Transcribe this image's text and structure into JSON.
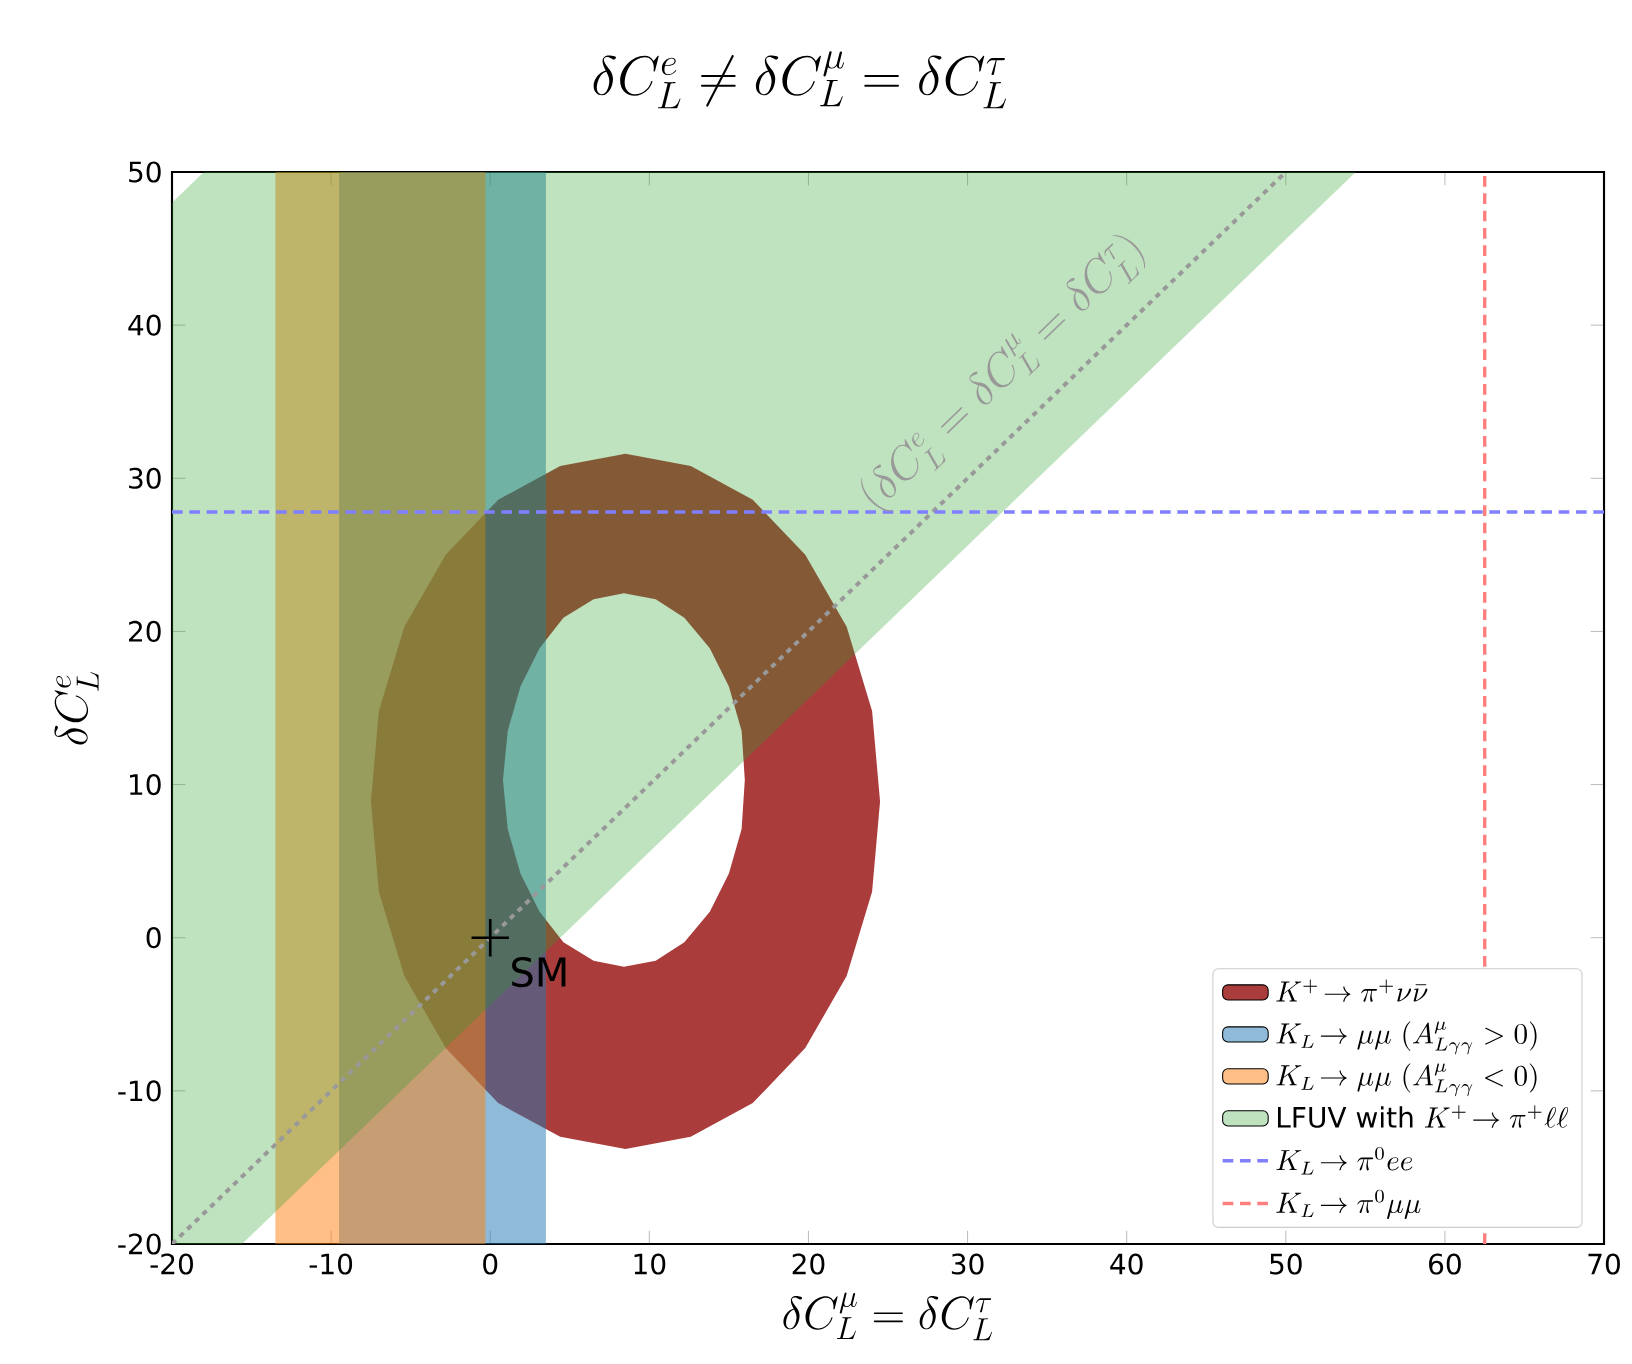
{
  "chart_data": {
    "type": "area",
    "title": "\\delta C^e_L \\neq \\delta C^\\mu_L = \\delta C^\\tau_L",
    "xlabel": "\\delta C^\\mu_L = \\delta C^\\tau_L",
    "ylabel": "\\delta C^e_L",
    "xlim": [
      -20,
      70
    ],
    "ylim": [
      -20,
      50
    ],
    "xticks": [
      -20,
      -10,
      0,
      10,
      20,
      30,
      40,
      50,
      60,
      70
    ],
    "yticks": [
      -20,
      -10,
      0,
      10,
      20,
      30,
      40,
      50
    ],
    "legend": "bottom right",
    "series": [
      {
        "name": "K^+\\!\\to\\pi^+\\nu\\bar{\\nu}",
        "color": "#ab3c3c",
        "x": [
          24.5,
          24.0,
          22.4,
          19.8,
          16.5,
          12.6,
          8.5,
          4.4,
          0.5,
          -2.8,
          -5.4,
          -7.0,
          -7.5,
          -7.0,
          -5.4,
          -2.8,
          0.5,
          4.4,
          8.5,
          12.6,
          16.5,
          19.8,
          22.4,
          24.0,
          null,
          16.0,
          15.8,
          15.0,
          13.8,
          12.2,
          10.4,
          8.4,
          6.5,
          4.6,
          3.1,
          1.9,
          1.1,
          0.8,
          1.1,
          1.9,
          3.1,
          4.6,
          6.5,
          8.4,
          10.4,
          12.2,
          13.8,
          15.0,
          15.8
        ],
        "values": [
          8.9,
          14.8,
          20.3,
          25.0,
          28.6,
          30.8,
          31.6,
          30.8,
          28.6,
          25.0,
          20.3,
          14.8,
          8.9,
          3.0,
          -2.5,
          -7.2,
          -10.8,
          -13.0,
          -13.8,
          -13.0,
          -10.8,
          -7.2,
          -2.5,
          3.0,
          null,
          10.3,
          13.5,
          16.4,
          18.9,
          20.9,
          22.1,
          22.5,
          22.1,
          20.9,
          18.9,
          16.4,
          13.5,
          10.3,
          7.1,
          4.2,
          1.7,
          -0.3,
          -1.5,
          -1.9,
          -1.5,
          -0.3,
          1.7,
          4.2,
          7.1
        ]
      },
      {
        "name": "K_L\\!\\to\\mu\\mu\\ (A^\\mu_{L\\gamma\\gamma}>0)",
        "color": "#1f77b4",
        "x": [
          -9.5,
          3.5,
          3.5,
          -9.5
        ],
        "values": [
          -20,
          -20,
          50,
          50
        ]
      },
      {
        "name": "K_L\\!\\to\\mu\\mu\\ (A^\\mu_{L\\gamma\\gamma}<0)",
        "color": "#ff7f0e",
        "x": [
          -13.5,
          -0.3,
          -0.3,
          -13.5
        ],
        "values": [
          -20,
          -20,
          50,
          50
        ]
      },
      {
        "name": "\\mathrm{LFUV\\ with\\ }K^+\\!\\to\\pi^+\\ell\\ell",
        "color": "#2ca02c",
        "x": [
          -20,
          -15.6,
          54.4,
          -18,
          -20
        ],
        "values": [
          -20,
          -20,
          50,
          50,
          48
        ]
      },
      {
        "type": "line",
        "line_style": "dotted",
        "color": "#999999",
        "x": [
          -20,
          0,
          25,
          50
        ],
        "values": [
          -20,
          0,
          25,
          50
        ]
      },
      {
        "type": "scatter",
        "marker": "cross",
        "color": "#000000",
        "x": [
          0
        ],
        "values": [
          0
        ]
      }
    ],
    "ref_lines": [
      {
        "axis": "y",
        "value": 27.8,
        "label": "K_L\\!\\to\\pi^0 ee",
        "color": "#7f7fff",
        "line_style": "dashed"
      },
      {
        "axis": "x",
        "value": 62.5,
        "label": "K_L\\!\\to\\pi^0\\mu\\mu",
        "color": "#ff7f7f",
        "line_style": "dashed"
      }
    ],
    "annotations": [
      "(\\delta C^e_L = \\delta C^\\mu_L = \\delta C^\\tau_L)",
      {
        "text": "SM",
        "x": 0,
        "y": 0
      }
    ]
  }
}
